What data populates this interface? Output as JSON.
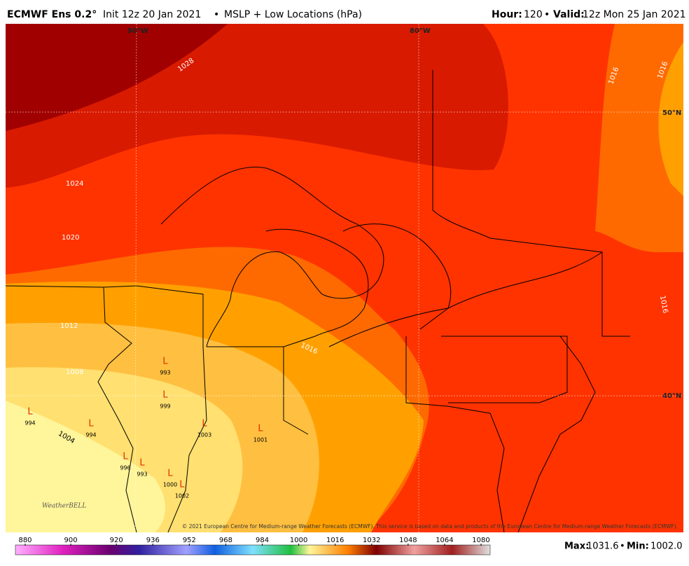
{
  "header": {
    "model": "ECMWF Ens 0.2°",
    "init": "Init 12z 20 Jan 2021",
    "separator": "•",
    "product": "MSLP + Low Locations (hPa)",
    "hour_label": "Hour:",
    "hour": "120",
    "valid_label": "Valid:",
    "valid": "12z Mon 25 Jan 2021"
  },
  "map": {
    "grid_labels": [
      "90°W",
      "80°W",
      "50°N",
      "40°N"
    ],
    "contours": [
      "1028",
      "1024",
      "1020",
      "1016",
      "1016",
      "1016",
      "1016",
      "1012",
      "1008",
      "1004"
    ],
    "low_symbol": "L",
    "lows": [
      "993",
      "999",
      "994",
      "994",
      "1003",
      "1001",
      "996",
      "993",
      "1000",
      "1002"
    ],
    "credit": "© 2021 European Centre for Medium-range Weather Forecasts (ECMWF). This service is based on data and products of the European Centre for Medium-range Weather Forecasts (ECMWF).",
    "logo": "WeatherBELL"
  },
  "colorbar": {
    "range": [
      880,
      1080
    ],
    "ticks": [
      880,
      900,
      920,
      936,
      952,
      968,
      984,
      1000,
      1016,
      1032,
      1048,
      1064,
      1080
    ]
  },
  "stats": {
    "max_label": "Max:",
    "max": "1031.6",
    "separator": "•",
    "min_label": "Min:",
    "min": "1002.0"
  }
}
